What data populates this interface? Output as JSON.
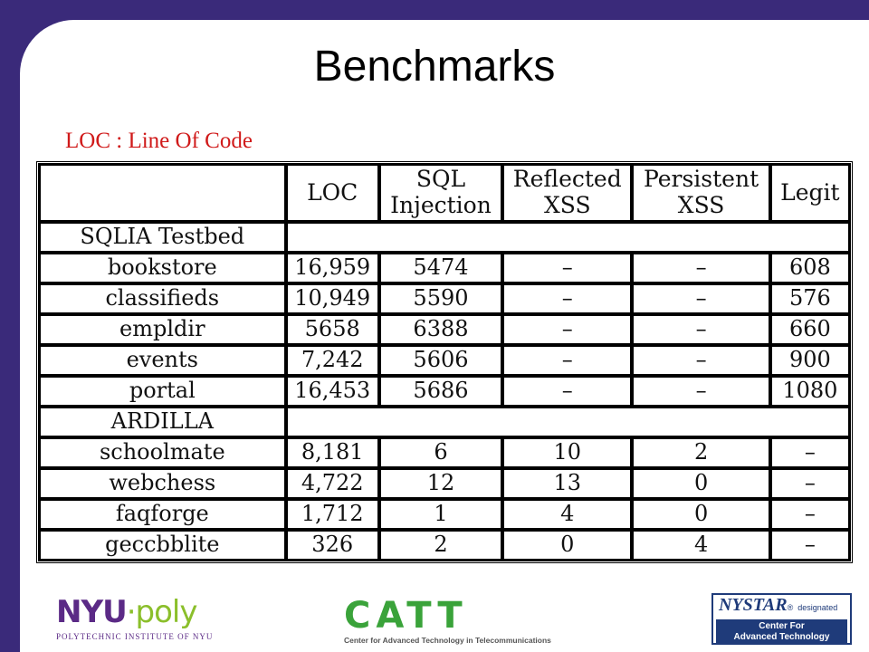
{
  "slide": {
    "title": "Benchmarks",
    "subtitle": "LOC : Line Of Code"
  },
  "table": {
    "headers": [
      {
        "line1": "",
        "line2": ""
      },
      {
        "line1": "LOC",
        "line2": ""
      },
      {
        "line1": "SQL",
        "line2": "Injection"
      },
      {
        "line1": "Reflected",
        "line2": "XSS"
      },
      {
        "line1": "Persistent",
        "line2": "XSS"
      },
      {
        "line1": "Legit",
        "line2": ""
      }
    ],
    "sections": [
      {
        "name": "SQLIA Testbed",
        "rows": [
          [
            "bookstore",
            "16,959",
            "5474",
            "–",
            "–",
            "608"
          ],
          [
            "classifieds",
            "10,949",
            "5590",
            "–",
            "–",
            "576"
          ],
          [
            "empldir",
            "5658",
            "6388",
            "–",
            "–",
            "660"
          ],
          [
            "events",
            "7,242",
            "5606",
            "–",
            "–",
            "900"
          ],
          [
            "portal",
            "16,453",
            "5686",
            "–",
            "–",
            "1080"
          ]
        ]
      },
      {
        "name": "ARDILLA",
        "rows": [
          [
            "schoolmate",
            "8,181",
            "6",
            "10",
            "2",
            "–"
          ],
          [
            "webchess",
            "4,722",
            "12",
            "13",
            "0",
            "–"
          ],
          [
            "faqforge",
            "1,712",
            "1",
            "4",
            "0",
            "–"
          ],
          [
            "geccbblite",
            "326",
            "2",
            "0",
            "4",
            "–"
          ]
        ]
      }
    ]
  },
  "footer": {
    "nyu_word_1": "NYU",
    "nyu_word_2": "·poly",
    "nyu_sub": "POLYTECHNIC INSTITUTE OF NYU",
    "catt_word": "CATT",
    "catt_sub": "Center for Advanced Technology in Telecommunications",
    "nystar_word": "NYSTAR",
    "nystar_mark": "®",
    "nystar_desig": "designated",
    "nystar_line1": "Center For",
    "nystar_line2": "Advanced Technology"
  },
  "colors": {
    "frame": "#3a2a7a",
    "subtitle": "#d01a1a",
    "nyu_purple": "#5b2a86",
    "poly_green": "#8bbf2b",
    "catt_green": "#3aa33a",
    "nystar_blue": "#1f3b7a"
  }
}
